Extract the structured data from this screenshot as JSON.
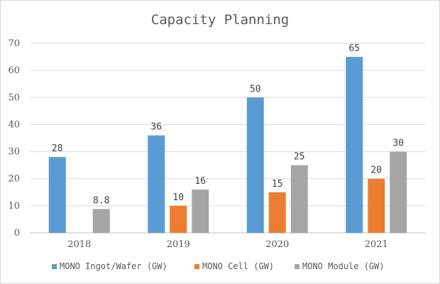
{
  "chart_data": {
    "type": "bar",
    "title": "Capacity Planning",
    "categories": [
      "2018",
      "2019",
      "2020",
      "2021"
    ],
    "series": [
      {
        "name": "MONO Ingot/Wafer (GW)",
        "color": "#5b9bd5",
        "values": [
          28,
          36,
          50,
          65
        ],
        "labels": [
          "28",
          "36",
          "50",
          "65"
        ]
      },
      {
        "name": "MONO Cell (GW)",
        "color": "#ed7d31",
        "values": [
          null,
          10,
          15,
          20
        ],
        "labels": [
          null,
          "10",
          "15",
          "20"
        ]
      },
      {
        "name": "MONO Module (GW)",
        "color": "#a5a5a5",
        "values": [
          8.8,
          16,
          25,
          30
        ],
        "labels": [
          "8.8",
          "16",
          "25",
          "30"
        ]
      }
    ],
    "ylim": [
      0,
      70
    ],
    "yticks": [
      0,
      10,
      20,
      30,
      40,
      50,
      60,
      70
    ],
    "xlabel": "",
    "ylabel": "",
    "grid": true,
    "legend_position": "bottom"
  }
}
